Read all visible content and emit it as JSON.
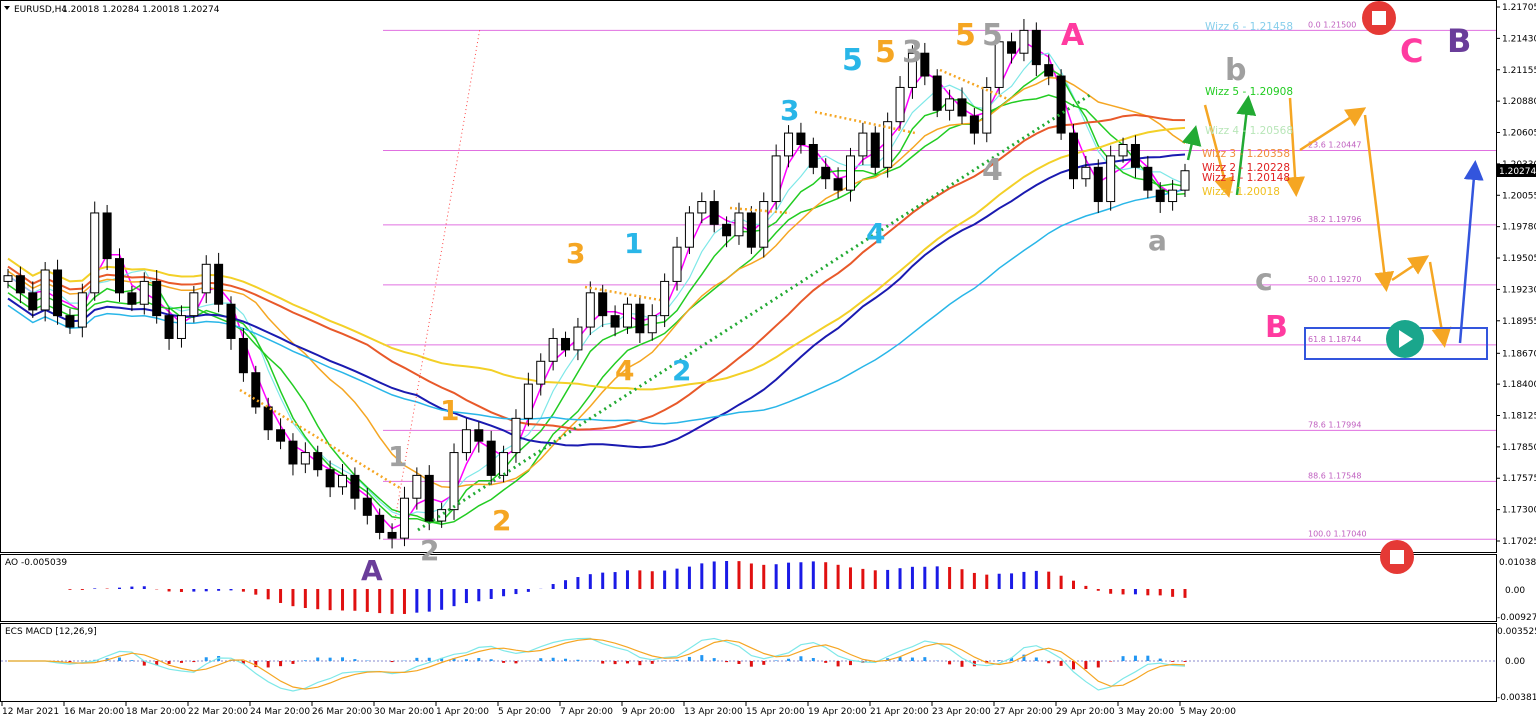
{
  "header": {
    "symbol": "EURUSD,H4",
    "ohlc": "1.20018 1.20284 1.20018 1.20274"
  },
  "price_axis": {
    "ticks": [
      "1.21705",
      "1.21430",
      "1.21155",
      "1.20880",
      "1.20605",
      "1.20330",
      "1.20055",
      "1.19780",
      "1.19505",
      "1.19230",
      "1.18955",
      "1.18670",
      "1.18400",
      "1.18125",
      "1.17850",
      "1.17575",
      "1.17300",
      "1.17025"
    ],
    "current": "1.20274"
  },
  "date_axis": [
    "12 Mar 2021",
    "16 Mar 20:00",
    "18 Mar 20:00",
    "22 Mar 20:00",
    "24 Mar 20:00",
    "26 Mar 20:00",
    "30 Mar 20:00",
    "1 Apr 20:00",
    "5 Apr 20:00",
    "7 Apr 20:00",
    "9 Apr 20:00",
    "13 Apr 20:00",
    "15 Apr 20:00",
    "19 Apr 20:00",
    "21 Apr 20:00",
    "23 Apr 20:00",
    "27 Apr 20:00",
    "29 Apr 20:00",
    "3 May 20:00",
    "5 May 20:00"
  ],
  "fib_levels": [
    {
      "label": "0.0 1.21500",
      "price": 1.215
    },
    {
      "label": "23.6 1.20447",
      "price": 1.20447
    },
    {
      "label": "38.2 1.19796",
      "price": 1.19796
    },
    {
      "label": "50.0 1.19270",
      "price": 1.1927
    },
    {
      "label": "61.8 1.18744",
      "price": 1.18744
    },
    {
      "label": "78.6 1.17994",
      "price": 1.17994
    },
    {
      "label": "88.6 1.17548",
      "price": 1.17548
    },
    {
      "label": "100.0 1.17040",
      "price": 1.1704
    }
  ],
  "wizz_levels": [
    {
      "label": "Wizz 6 - 1.21458",
      "color": "#87ceeb"
    },
    {
      "label": "Wizz 5 - 1.20908",
      "color": "#22cc22"
    },
    {
      "label": "Wizz 4 - 1.20568",
      "color": "#b8e6b8"
    },
    {
      "label": "Wizz 3 - 1.20358",
      "color": "#f08c3a"
    },
    {
      "label": "Wizz 2 - 1.20228",
      "color": "#e02020"
    },
    {
      "label": "Wizz 1 - 1.20148",
      "color": "#e02020"
    },
    {
      "label": "Wizz - 1.20018",
      "color": "#f0c020"
    }
  ],
  "wave_labels": {
    "A_bottom": "A",
    "wave1_gray": "1",
    "wave2_gray": "2",
    "wave1_orange": "1",
    "wave2_orange": "2",
    "wave3_orange": "3",
    "wave1_blue": "1",
    "wave4_orange": "4",
    "wave2_blue": "2",
    "wave3_blue": "3",
    "wave4_blue": "4",
    "wave5_blue": "5",
    "wave5_orange_a": "5",
    "wave3_gray": "3",
    "wave5_orange_b": "5",
    "wave5_gray": "5",
    "wave4_gray": "4",
    "A_top": "A",
    "a_gray": "a",
    "b_gray": "b",
    "c_gray": "c",
    "B_pink": "B",
    "C_pink": "C",
    "B_purple": "B"
  },
  "ao_panel": {
    "title": "AO -0.005039",
    "ticks": [
      "0.010384",
      "0.00",
      "-0.009279"
    ]
  },
  "macd_panel": {
    "title": "ECS MACD [12,26,9]",
    "ticks": [
      "0.0035257",
      "0.00",
      "-0.003815"
    ]
  },
  "colors": {
    "bull": "#3a3a3a",
    "bear": "#000000",
    "ao_up": "#1a1ae6",
    "ao_down": "#e01010",
    "fib": "#e070e0",
    "arrow_orange": "#f5a623",
    "arrow_blue": "#3355dd",
    "arrow_green": "#22aa33"
  },
  "chart_data": {
    "type": "candlestick",
    "title": "EURUSD,H4",
    "ylim": [
      1.17025,
      1.21705
    ],
    "close_path": [
      1.1935,
      1.192,
      1.1905,
      1.194,
      1.19,
      1.189,
      1.192,
      1.199,
      1.195,
      1.192,
      1.191,
      1.193,
      1.19,
      1.188,
      1.19,
      1.192,
      1.1945,
      1.191,
      1.188,
      1.185,
      1.182,
      1.18,
      1.179,
      1.177,
      1.178,
      1.1765,
      1.175,
      1.176,
      1.174,
      1.1725,
      1.171,
      1.1705,
      1.174,
      1.176,
      1.172,
      1.173,
      1.178,
      1.18,
      1.179,
      1.176,
      1.178,
      1.181,
      1.184,
      1.186,
      1.188,
      1.187,
      1.189,
      1.192,
      1.19,
      1.189,
      1.191,
      1.1885,
      1.19,
      1.193,
      1.196,
      1.199,
      1.2,
      1.198,
      1.197,
      1.199,
      1.196,
      1.2,
      1.204,
      1.206,
      1.205,
      1.203,
      1.202,
      1.201,
      1.204,
      1.206,
      1.203,
      1.207,
      1.21,
      1.213,
      1.211,
      1.208,
      1.209,
      1.2075,
      1.206,
      1.21,
      1.214,
      1.213,
      1.215,
      1.212,
      1.211,
      1.206,
      1.202,
      1.203,
      1.2,
      1.204,
      1.205,
      1.203,
      1.201,
      1.2,
      1.201,
      1.2027
    ]
  }
}
